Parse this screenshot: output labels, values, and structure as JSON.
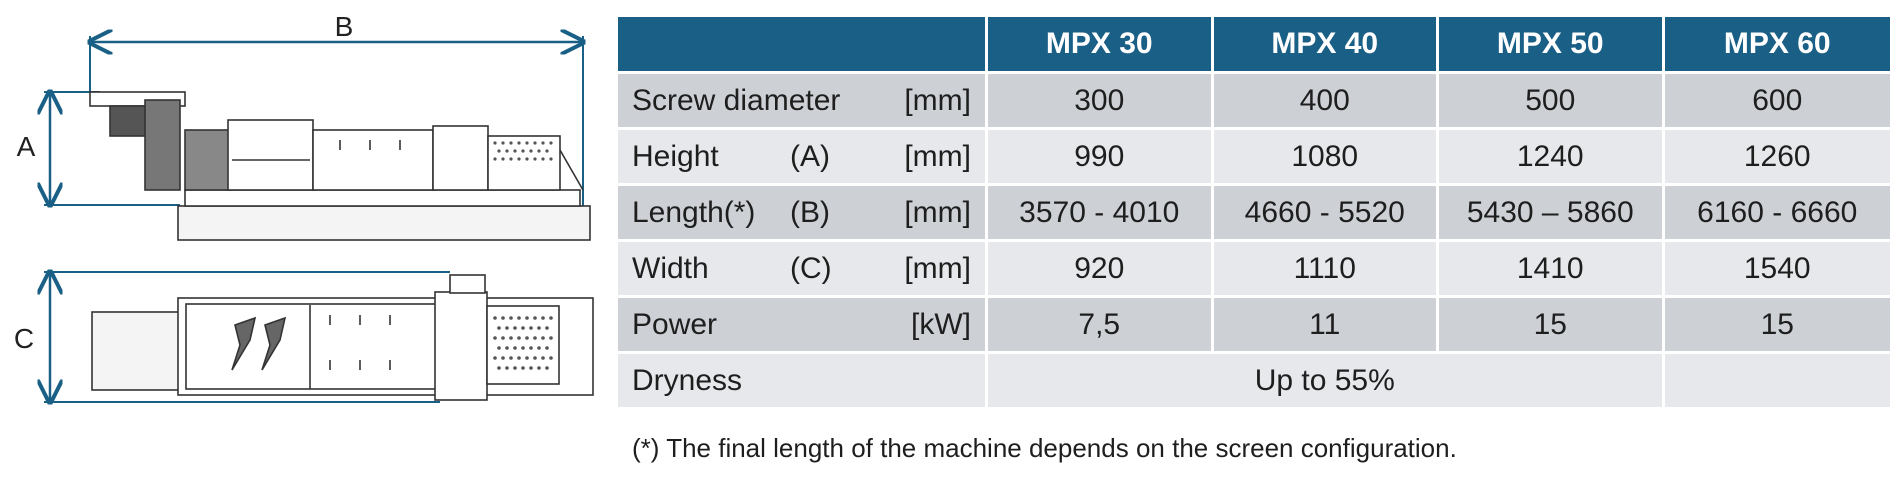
{
  "drawings": {
    "dim_b_label": "B",
    "dim_a_label": "A",
    "dim_c_label": "C"
  },
  "table": {
    "headers": [
      "",
      "MPX 30",
      "MPX 40",
      "MPX 50",
      "MPX 60"
    ],
    "rows": [
      {
        "name": "Screw diameter",
        "code": "",
        "unit": "[mm]",
        "values": [
          "300",
          "400",
          "500",
          "600"
        ]
      },
      {
        "name": "Height",
        "code": "(A)",
        "unit": "[mm]",
        "values": [
          "990",
          "1080",
          "1240",
          "1260"
        ]
      },
      {
        "name": "Length(*)",
        "code": "(B)",
        "unit": "[mm]",
        "values": [
          "3570 - 4010",
          "4660 - 5520",
          "5430 – 5860",
          "6160 - 6660"
        ]
      },
      {
        "name": "Width",
        "code": "(C)",
        "unit": "[mm]",
        "values": [
          "920",
          "1110",
          "1410",
          "1540"
        ]
      },
      {
        "name": "Power",
        "code": "",
        "unit": "[kW]",
        "values": [
          "7,5",
          "11",
          "15",
          "15"
        ]
      }
    ],
    "dryness": {
      "name": "Dryness",
      "value": "Up to 55%"
    }
  },
  "footnote": "(*) The final length of the machine depends on the screen configuration.",
  "colors": {
    "header_bg": "#1a5f86",
    "row_dark": "#cdd1d6",
    "row_light": "#e6e8eb",
    "dimension_line": "#1a5f86"
  }
}
